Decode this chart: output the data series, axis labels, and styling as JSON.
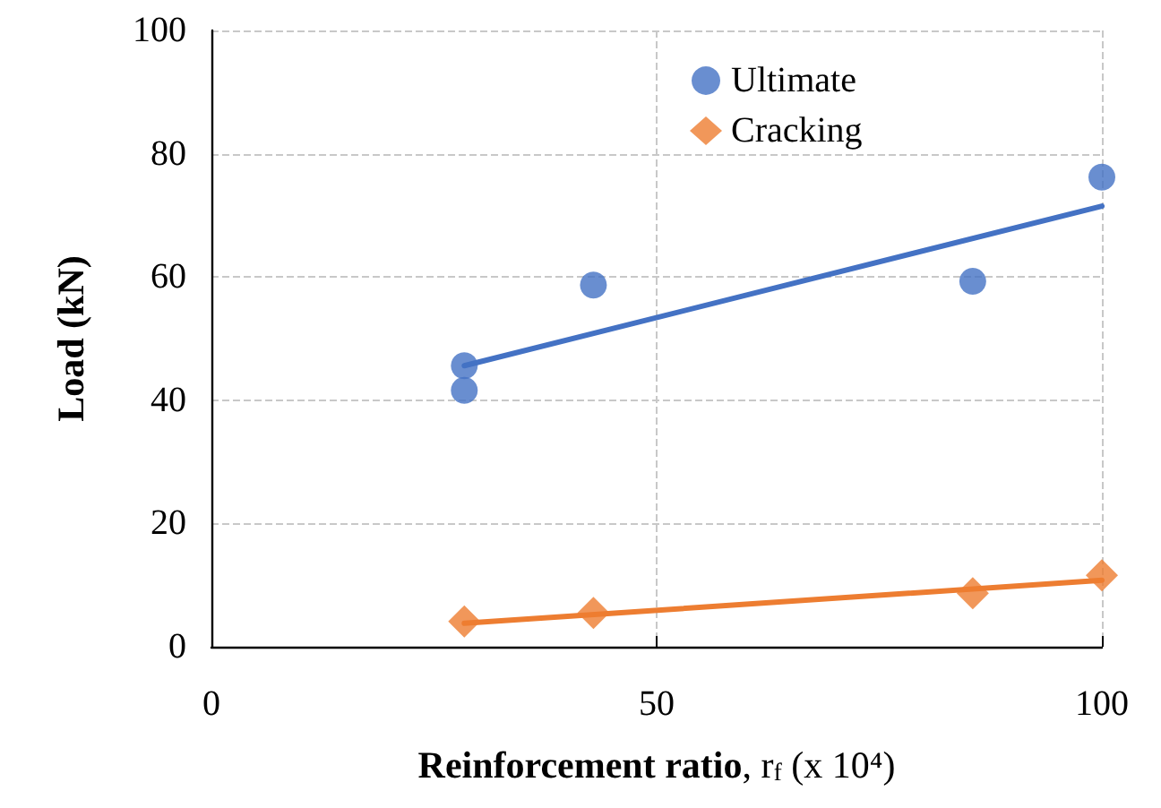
{
  "chart_data": {
    "type": "scatter",
    "xlabel": "Reinforcement ratio, r$_{f}$ (x 10⁴)",
    "ylabel": "Load (kN)",
    "xlim": [
      0,
      100
    ],
    "xticks": [
      0,
      50,
      100
    ],
    "ylim": [
      0,
      100
    ],
    "yticks": [
      0,
      20,
      40,
      60,
      80,
      100
    ],
    "grid": true,
    "legend": "top right",
    "series": [
      {
        "name": "Ultimate",
        "color": "#4472c4",
        "marker": "circle",
        "x": [
          28.4,
          28.4,
          42.9,
          85.5,
          100
        ],
        "values": [
          45.6,
          41.6,
          58.7,
          59.3,
          76.2
        ]
      },
      {
        "name": "Cracking",
        "color": "#ed7d31",
        "marker": "diamond",
        "x": [
          28.4,
          42.9,
          85.5,
          100
        ],
        "values": [
          4.1,
          5.5,
          8.7,
          11.6
        ]
      },
      {
        "type": "line",
        "color": "#4472c4",
        "marker": "none",
        "line_style": "solid",
        "x": [
          28.4,
          100
        ],
        "values": [
          45.6,
          71.5
        ]
      },
      {
        "type": "line",
        "color": "#ed7d31",
        "marker": "none",
        "line_style": "solid",
        "x": [
          28.4,
          100
        ],
        "values": [
          3.8,
          10.8
        ]
      }
    ]
  }
}
